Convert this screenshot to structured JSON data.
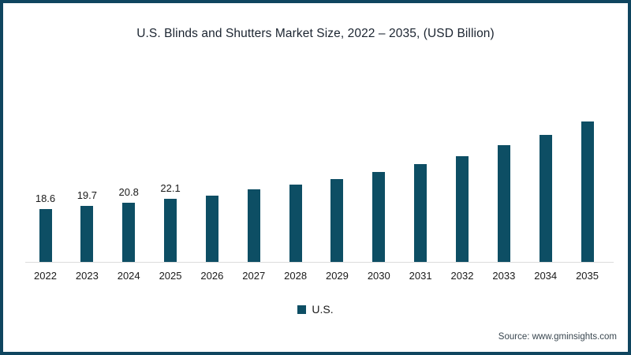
{
  "title": "U.S. Blinds and Shutters Market Size, 2022 – 2035, (USD Billion)",
  "legend": {
    "label": "U.S.",
    "color": "#0d4e64"
  },
  "source": "Source: www.gminsights.com",
  "colors": {
    "bar": "#0d4e64",
    "frame_border": "#0f455f",
    "axis_line": "#dcdcdc",
    "title_text": "#1b2430",
    "tick_text": "#1a1a1a",
    "source_text": "#3a4750"
  },
  "chart_data": {
    "type": "bar",
    "title": "U.S. Blinds and Shutters Market Size, 2022 – 2035, (USD Billion)",
    "categories": [
      "2022",
      "2023",
      "2024",
      "2025",
      "2026",
      "2027",
      "2028",
      "2029",
      "2030",
      "2031",
      "2032",
      "2033",
      "2034",
      "2035"
    ],
    "series": [
      {
        "name": "U.S.",
        "values": [
          18.6,
          19.7,
          20.8,
          22.1,
          23.2,
          25.4,
          27.1,
          29.0,
          31.5,
          34.2,
          37.0,
          40.9,
          44.5,
          49.2
        ]
      }
    ],
    "data_labels": [
      "18.6",
      "19.7",
      "20.8",
      "22.1",
      "",
      "",
      "",
      "",
      "",
      "",
      "",
      "",
      "",
      ""
    ],
    "xlabel": "",
    "ylabel": "",
    "unit": "USD Billion",
    "ylim": [
      0,
      50
    ],
    "grid": false,
    "y_axis_visible": false,
    "legend_position": "bottom-center"
  }
}
